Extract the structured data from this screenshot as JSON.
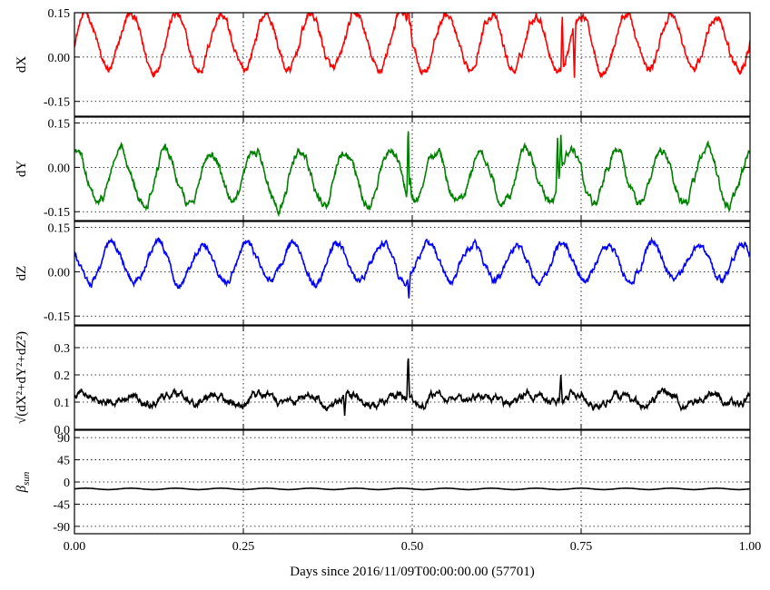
{
  "chart_data": {
    "type": "line",
    "xlabel": "Days since 2016/11/09T00:00:00.00 (57701)",
    "xlim": [
      0.0,
      1.0
    ],
    "x_ticks": [
      "0.00",
      "0.25",
      "0.50",
      "0.75",
      "1.00"
    ],
    "x_tick_values": [
      0.0,
      0.25,
      0.5,
      0.75,
      1.0
    ],
    "grid": true,
    "panels": [
      {
        "key": "dx",
        "ylabel": "dX",
        "ylim": [
          -0.2,
          0.15
        ],
        "y_ticks": [
          "0.15",
          "0.00",
          "-0.15"
        ],
        "y_tick_values": [
          0.15,
          0.0,
          -0.15
        ],
        "color": "#ff0000",
        "signal": {
          "baseline": 0.05,
          "amplitude": 0.095,
          "cycles": 15,
          "phase": 0.0,
          "noise": 0.012
        },
        "spikes": [
          {
            "x": 0.494,
            "value": 0.22
          },
          {
            "x": 0.497,
            "value": 0.12
          },
          {
            "x": 0.722,
            "value": 0.15
          },
          {
            "x": 0.74,
            "value": -0.07
          }
        ]
      },
      {
        "key": "dy",
        "ylabel": "dY",
        "ylim": [
          -0.18,
          0.17
        ],
        "y_ticks": [
          "0.15",
          "0.00",
          "-0.15"
        ],
        "y_tick_values": [
          0.15,
          0.0,
          -0.15
        ],
        "color": "#008000",
        "signal": {
          "baseline": -0.035,
          "amplitude": 0.09,
          "cycles": 15,
          "phase": 1.4,
          "noise": 0.012
        },
        "spikes": [
          {
            "x": 0.494,
            "value": 0.16
          },
          {
            "x": 0.497,
            "value": -0.03
          },
          {
            "x": 0.715,
            "value": 0.1
          },
          {
            "x": 0.72,
            "value": 0.11
          }
        ]
      },
      {
        "key": "dz",
        "ylabel": "dZ",
        "ylim": [
          -0.18,
          0.17
        ],
        "y_ticks": [
          "0.15",
          "0.00",
          "-0.15"
        ],
        "y_tick_values": [
          0.15,
          0.0,
          -0.15
        ],
        "color": "#0000ff",
        "signal": {
          "baseline": 0.03,
          "amplitude": 0.065,
          "cycles": 15,
          "phase": 2.6,
          "noise": 0.01
        },
        "spikes": [
          {
            "x": 0.4,
            "value": 0.06
          },
          {
            "x": 0.495,
            "value": -0.09
          },
          {
            "x": 0.72,
            "value": 0.09
          }
        ]
      },
      {
        "key": "dr",
        "ylabel": "√(dX²+dY²+dZ²)",
        "ylim": [
          0.0,
          0.38
        ],
        "y_ticks": [
          "0.3",
          "0.2",
          "0.1",
          "0.0"
        ],
        "y_tick_values": [
          0.3,
          0.2,
          0.1,
          0.0
        ],
        "color": "#000000",
        "signal": {
          "baseline": 0.11,
          "amplitude": 0.018,
          "cycles": 15,
          "phase": 0.7,
          "noise": 0.012
        },
        "spikes": [
          {
            "x": 0.494,
            "value": 0.285
          },
          {
            "x": 0.72,
            "value": 0.2
          },
          {
            "x": 0.4,
            "value": 0.05
          }
        ]
      },
      {
        "key": "beta",
        "ylabel": "β_sun",
        "ylim": [
          -105,
          105
        ],
        "y_ticks": [
          "90",
          "45",
          "0",
          "-45",
          "-90"
        ],
        "y_tick_values": [
          90,
          45,
          0,
          -45,
          -90
        ],
        "color": "#000000",
        "signal": {
          "baseline": -14,
          "amplitude": 1.4,
          "cycles": 15,
          "phase": 0.0,
          "noise": 0.0
        },
        "spikes": []
      }
    ]
  }
}
